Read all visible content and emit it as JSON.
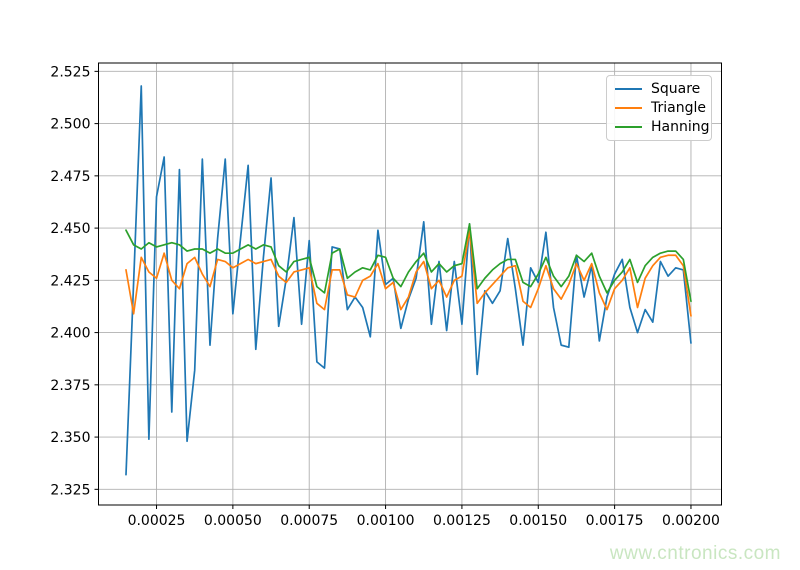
{
  "watermark": {
    "text": "www.cntronics.com",
    "color": "#c9e6c1"
  },
  "chart_data": {
    "type": "line",
    "title": "",
    "xlabel": "",
    "ylabel": "",
    "grid": true,
    "grid_color": "#b0b0b0",
    "background": "#ffffff",
    "legend_position": "upper right",
    "xlim": [
      6e-05,
      0.0021
    ],
    "ylim": [
      2.3175,
      2.529
    ],
    "xticks": {
      "values": [
        0.00025,
        0.0005,
        0.00075,
        0.001,
        0.00125,
        0.0015,
        0.00175,
        0.002
      ],
      "labels": [
        "0.00025",
        "0.00050",
        "0.00075",
        "0.00100",
        "0.00125",
        "0.00150",
        "0.00175",
        "0.00200"
      ]
    },
    "yticks": {
      "values": [
        2.325,
        2.35,
        2.375,
        2.4,
        2.425,
        2.45,
        2.475,
        2.5,
        2.525
      ],
      "labels": [
        "2.325",
        "2.350",
        "2.375",
        "2.400",
        "2.425",
        "2.450",
        "2.475",
        "2.500",
        "2.525"
      ]
    },
    "x": [
      0.00015,
      0.000175,
      0.0002,
      0.000225,
      0.00025,
      0.000275,
      0.0003,
      0.000325,
      0.00035,
      0.000375,
      0.0004,
      0.000425,
      0.00045,
      0.000475,
      0.0005,
      0.000525,
      0.00055,
      0.000575,
      0.0006,
      0.000625,
      0.00065,
      0.000675,
      0.0007,
      0.000725,
      0.00075,
      0.000775,
      0.0008,
      0.000825,
      0.00085,
      0.000875,
      0.0009,
      0.000925,
      0.00095,
      0.000975,
      0.001,
      0.001025,
      0.00105,
      0.001075,
      0.0011,
      0.001125,
      0.00115,
      0.001175,
      0.0012,
      0.001225,
      0.00125,
      0.001275,
      0.0013,
      0.001325,
      0.00135,
      0.001375,
      0.0014,
      0.001425,
      0.00145,
      0.001475,
      0.0015,
      0.001525,
      0.00155,
      0.001575,
      0.0016,
      0.001625,
      0.00165,
      0.001675,
      0.0017,
      0.001725,
      0.00175,
      0.001775,
      0.0018,
      0.001825,
      0.00185,
      0.001875,
      0.0019,
      0.001925,
      0.00195,
      0.001975,
      0.002
    ],
    "series": [
      {
        "name": "Square",
        "color": "#1f77b4",
        "values": [
          2.332,
          2.424,
          2.518,
          2.349,
          2.465,
          2.484,
          2.362,
          2.478,
          2.348,
          2.382,
          2.483,
          2.394,
          2.445,
          2.483,
          2.409,
          2.445,
          2.48,
          2.392,
          2.436,
          2.474,
          2.403,
          2.426,
          2.455,
          2.404,
          2.444,
          2.386,
          2.383,
          2.441,
          2.44,
          2.411,
          2.417,
          2.412,
          2.398,
          2.449,
          2.423,
          2.426,
          2.402,
          2.416,
          2.426,
          2.453,
          2.404,
          2.434,
          2.401,
          2.434,
          2.404,
          2.452,
          2.38,
          2.42,
          2.414,
          2.42,
          2.445,
          2.421,
          2.394,
          2.431,
          2.424,
          2.448,
          2.412,
          2.394,
          2.393,
          2.437,
          2.417,
          2.432,
          2.396,
          2.417,
          2.428,
          2.435,
          2.412,
          2.4,
          2.411,
          2.405,
          2.434,
          2.427,
          2.431,
          2.43,
          2.395
        ]
      },
      {
        "name": "Triangle",
        "color": "#ff7f0e",
        "values": [
          2.43,
          2.409,
          2.436,
          2.429,
          2.426,
          2.438,
          2.425,
          2.421,
          2.433,
          2.436,
          2.428,
          2.422,
          2.435,
          2.434,
          2.431,
          2.433,
          2.435,
          2.433,
          2.434,
          2.435,
          2.427,
          2.424,
          2.429,
          2.43,
          2.431,
          2.414,
          2.411,
          2.43,
          2.43,
          2.418,
          2.417,
          2.425,
          2.427,
          2.433,
          2.421,
          2.424,
          2.411,
          2.417,
          2.429,
          2.434,
          2.421,
          2.425,
          2.417,
          2.425,
          2.427,
          2.449,
          2.414,
          2.419,
          2.423,
          2.427,
          2.431,
          2.432,
          2.415,
          2.412,
          2.421,
          2.432,
          2.421,
          2.416,
          2.423,
          2.433,
          2.425,
          2.433,
          2.419,
          2.411,
          2.421,
          2.425,
          2.431,
          2.412,
          2.426,
          2.432,
          2.436,
          2.437,
          2.437,
          2.432,
          2.408
        ]
      },
      {
        "name": "Hanning",
        "color": "#2ca02c",
        "values": [
          2.449,
          2.442,
          2.44,
          2.443,
          2.441,
          2.442,
          2.443,
          2.442,
          2.439,
          2.44,
          2.44,
          2.438,
          2.44,
          2.438,
          2.438,
          2.44,
          2.442,
          2.44,
          2.442,
          2.441,
          2.432,
          2.429,
          2.434,
          2.435,
          2.436,
          2.422,
          2.419,
          2.438,
          2.44,
          2.426,
          2.429,
          2.431,
          2.43,
          2.437,
          2.436,
          2.426,
          2.422,
          2.429,
          2.434,
          2.438,
          2.429,
          2.433,
          2.429,
          2.432,
          2.433,
          2.452,
          2.421,
          2.426,
          2.43,
          2.433,
          2.435,
          2.435,
          2.424,
          2.422,
          2.428,
          2.436,
          2.427,
          2.422,
          2.427,
          2.437,
          2.434,
          2.438,
          2.427,
          2.419,
          2.425,
          2.429,
          2.435,
          2.424,
          2.432,
          2.436,
          2.438,
          2.439,
          2.439,
          2.435,
          2.415
        ]
      }
    ]
  }
}
